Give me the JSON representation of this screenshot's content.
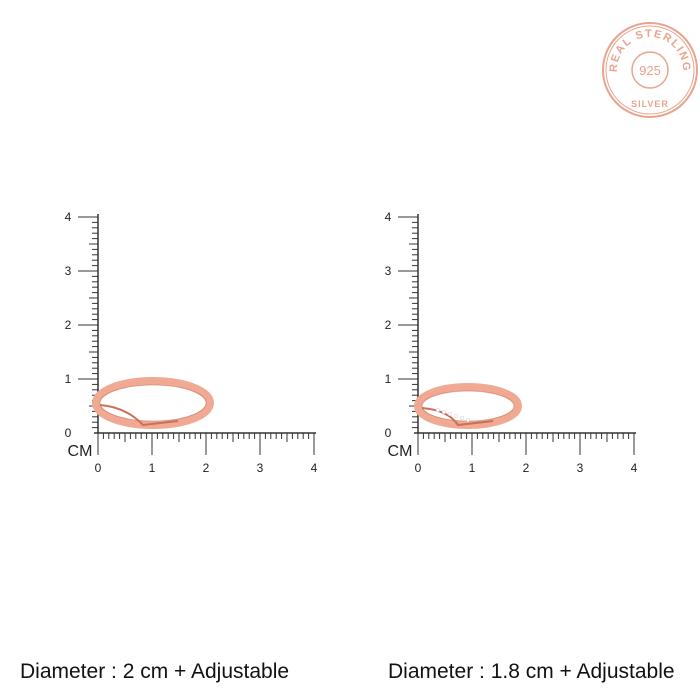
{
  "seal": {
    "top_text": "REAL STERLING",
    "center_text": "925",
    "bottom_text": "SILVER",
    "color": "#e8a48e"
  },
  "rulers": [
    {
      "unit_label": "CM",
      "ticks": [
        "0",
        "1",
        "2",
        "3",
        "4"
      ],
      "caption": "Diameter : 2 cm + Adjustable",
      "ring": "twisted band ring"
    },
    {
      "unit_label": "CM",
      "ticks": [
        "0",
        "1",
        "2",
        "3",
        "4"
      ],
      "caption": "Diameter : 1.8 cm + Adjustable",
      "ring": "stone-set twisted band ring"
    }
  ],
  "colors": {
    "ring": "#f0a993",
    "ring_dark": "#c9705a",
    "ruler": "#333333"
  }
}
